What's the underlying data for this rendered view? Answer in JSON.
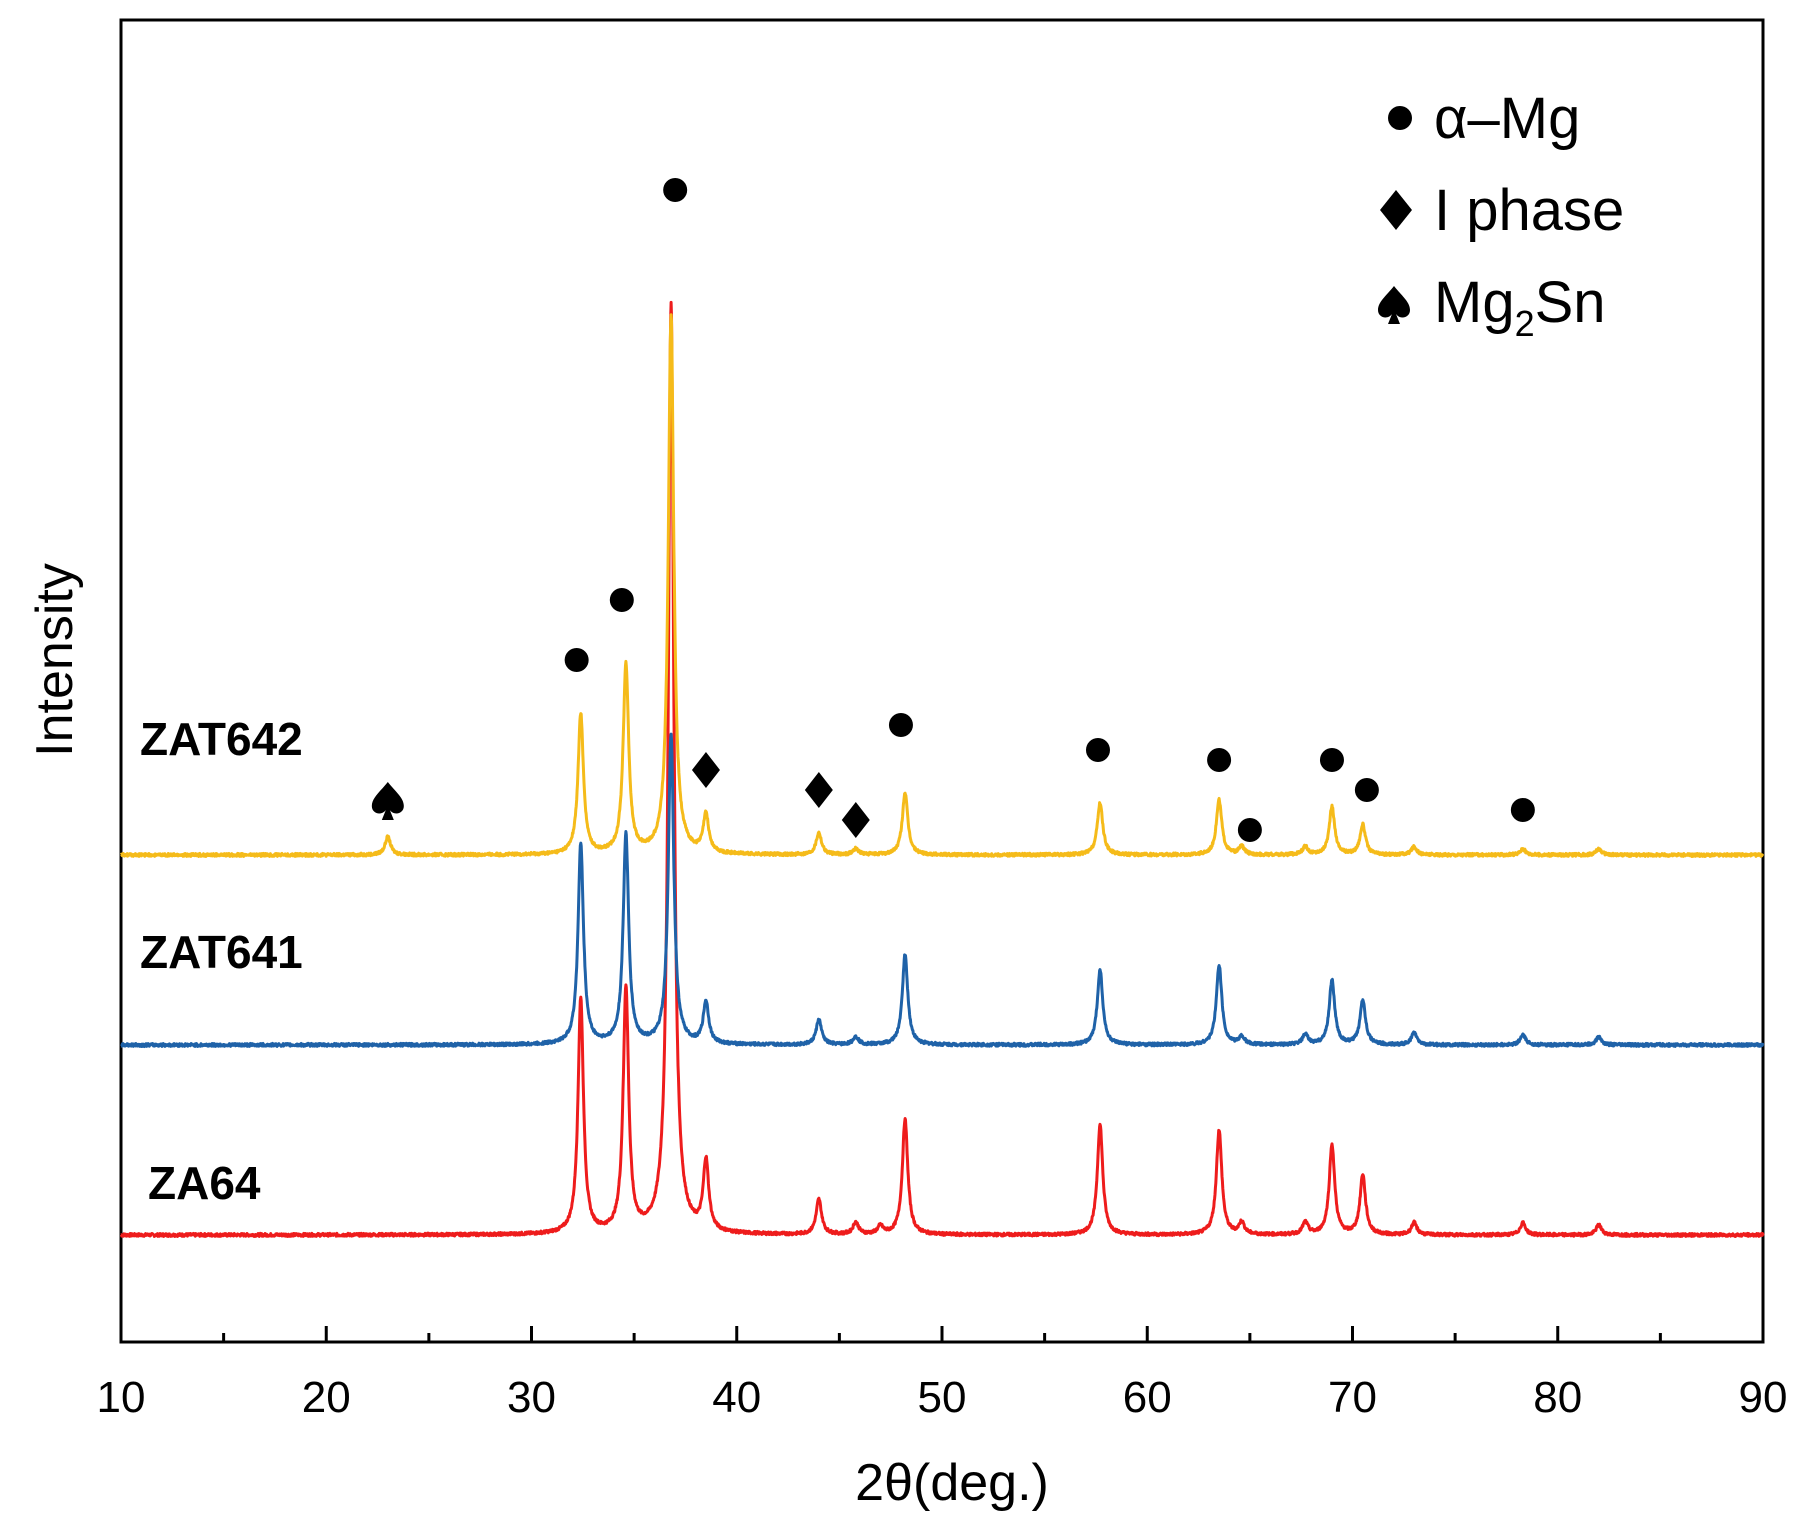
{
  "chart_data": {
    "type": "line",
    "xlabel": "2θ(deg.)",
    "ylabel": "Intensity",
    "xlim": [
      10,
      90
    ],
    "x_ticks": [
      "10",
      "20",
      "30",
      "40",
      "50",
      "60",
      "70",
      "80",
      "90"
    ],
    "colors": {
      "ZA64": "#ee1c1c",
      "ZAT641": "#1f62a8",
      "ZAT642": "#f5bb1a"
    },
    "series": [
      {
        "name": "ZA64",
        "offset": 0,
        "peaks": [
          {
            "x": 32.4,
            "h": 235
          },
          {
            "x": 34.6,
            "h": 245
          },
          {
            "x": 36.8,
            "h": 930
          },
          {
            "x": 38.5,
            "h": 70
          },
          {
            "x": 44.0,
            "h": 35
          },
          {
            "x": 45.8,
            "h": 12
          },
          {
            "x": 47.0,
            "h": 8
          },
          {
            "x": 48.2,
            "h": 115
          },
          {
            "x": 57.7,
            "h": 110
          },
          {
            "x": 63.5,
            "h": 105
          },
          {
            "x": 64.6,
            "h": 12
          },
          {
            "x": 67.7,
            "h": 12
          },
          {
            "x": 69.0,
            "h": 90
          },
          {
            "x": 70.5,
            "h": 60
          },
          {
            "x": 73.0,
            "h": 12
          },
          {
            "x": 78.3,
            "h": 12
          },
          {
            "x": 82.0,
            "h": 10
          }
        ]
      },
      {
        "name": "ZAT641",
        "offset": 190,
        "peaks": [
          {
            "x": 32.4,
            "h": 200
          },
          {
            "x": 34.6,
            "h": 210
          },
          {
            "x": 36.8,
            "h": 310
          },
          {
            "x": 38.5,
            "h": 42
          },
          {
            "x": 44.0,
            "h": 25
          },
          {
            "x": 45.8,
            "h": 8
          },
          {
            "x": 48.2,
            "h": 90
          },
          {
            "x": 57.7,
            "h": 75
          },
          {
            "x": 63.5,
            "h": 80
          },
          {
            "x": 64.6,
            "h": 8
          },
          {
            "x": 67.7,
            "h": 10
          },
          {
            "x": 69.0,
            "h": 65
          },
          {
            "x": 70.5,
            "h": 45
          },
          {
            "x": 73.0,
            "h": 12
          },
          {
            "x": 78.3,
            "h": 10
          },
          {
            "x": 82.0,
            "h": 8
          }
        ]
      },
      {
        "name": "ZAT642",
        "offset": 380,
        "peaks": [
          {
            "x": 23.0,
            "h": 18
          },
          {
            "x": 32.4,
            "h": 140
          },
          {
            "x": 34.6,
            "h": 190
          },
          {
            "x": 36.8,
            "h": 540
          },
          {
            "x": 38.5,
            "h": 38
          },
          {
            "x": 44.0,
            "h": 22
          },
          {
            "x": 45.8,
            "h": 6
          },
          {
            "x": 48.2,
            "h": 62
          },
          {
            "x": 57.7,
            "h": 52
          },
          {
            "x": 63.5,
            "h": 55
          },
          {
            "x": 64.6,
            "h": 8
          },
          {
            "x": 67.7,
            "h": 8
          },
          {
            "x": 69.0,
            "h": 48
          },
          {
            "x": 70.5,
            "h": 30
          },
          {
            "x": 73.0,
            "h": 8
          },
          {
            "x": 78.3,
            "h": 6
          },
          {
            "x": 82.0,
            "h": 6
          }
        ]
      }
    ],
    "annotations": [
      {
        "symbol": "spade",
        "x": 23.0,
        "intensity_above_baseline": 55,
        "series": "ZAT642"
      },
      {
        "symbol": "circle",
        "x": 32.2,
        "intensity_above_baseline": 195,
        "series": "ZAT642"
      },
      {
        "symbol": "circle",
        "x": 34.4,
        "intensity_above_baseline": 255,
        "series": "ZAT642"
      },
      {
        "symbol": "circle",
        "x": 37.0,
        "intensity_above_baseline": 665,
        "series": "ZAT642"
      },
      {
        "symbol": "diamond",
        "x": 38.5,
        "intensity_above_baseline": 85,
        "series": "ZAT642"
      },
      {
        "symbol": "diamond",
        "x": 44.0,
        "intensity_above_baseline": 65,
        "series": "ZAT642"
      },
      {
        "symbol": "diamond",
        "x": 45.8,
        "intensity_above_baseline": 35,
        "series": "ZAT642"
      },
      {
        "symbol": "circle",
        "x": 48.0,
        "intensity_above_baseline": 130,
        "series": "ZAT642"
      },
      {
        "symbol": "circle",
        "x": 57.6,
        "intensity_above_baseline": 105,
        "series": "ZAT642"
      },
      {
        "symbol": "circle",
        "x": 63.5,
        "intensity_above_baseline": 95,
        "series": "ZAT642"
      },
      {
        "symbol": "circle",
        "x": 65.0,
        "intensity_above_baseline": 25,
        "series": "ZAT642"
      },
      {
        "symbol": "circle",
        "x": 69.0,
        "intensity_above_baseline": 95,
        "series": "ZAT642"
      },
      {
        "symbol": "circle",
        "x": 70.7,
        "intensity_above_baseline": 65,
        "series": "ZAT642"
      },
      {
        "symbol": "circle",
        "x": 78.3,
        "intensity_above_baseline": 45,
        "series": "ZAT642"
      }
    ],
    "legend": {
      "position": "top-right",
      "entries": [
        {
          "symbol": "circle",
          "label": "α–Mg"
        },
        {
          "symbol": "diamond",
          "label": "I phase"
        },
        {
          "symbol": "spade",
          "label_main": "Mg",
          "label_sub": "2",
          "label_tail": "Sn"
        }
      ]
    }
  }
}
